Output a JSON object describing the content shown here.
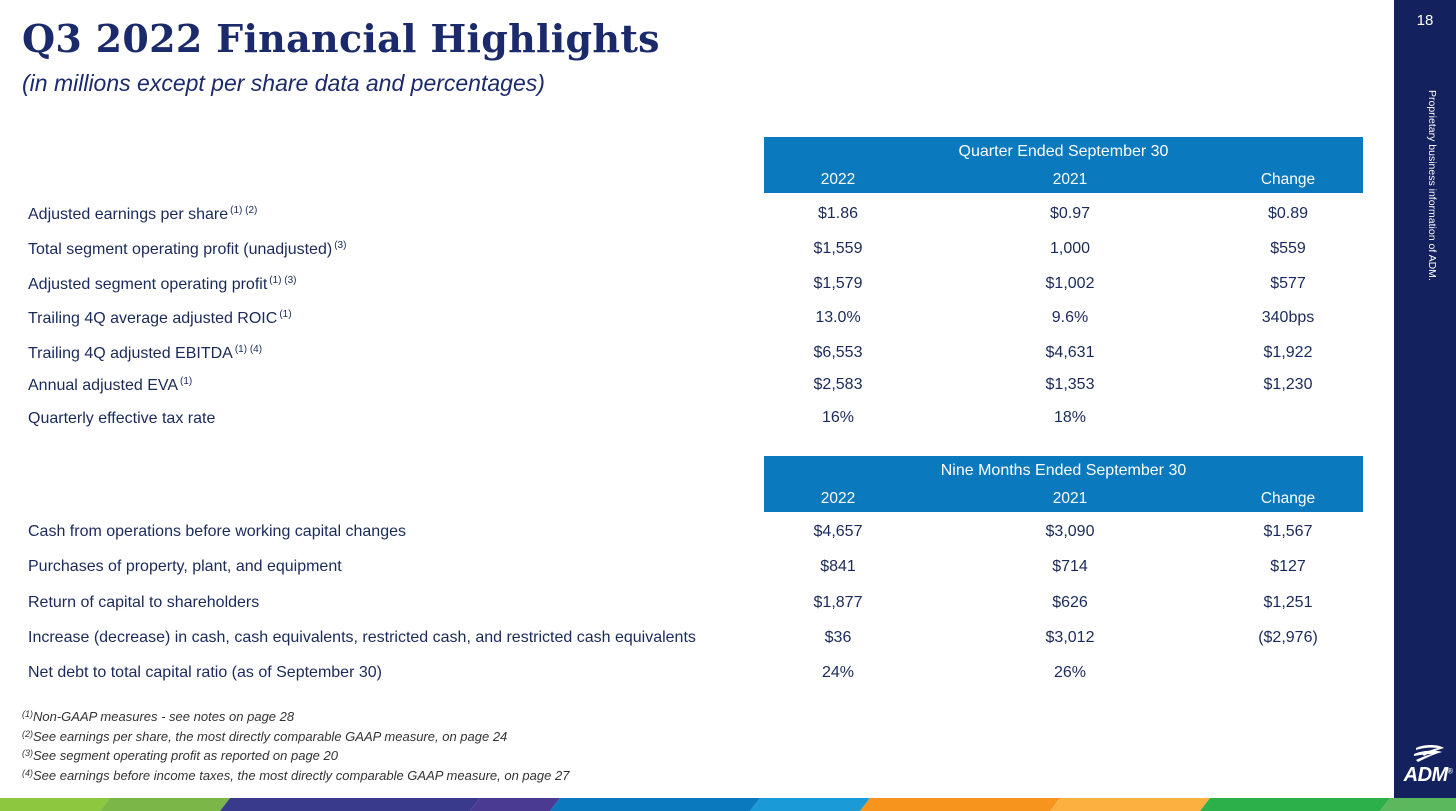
{
  "header": {
    "title": "Q3 2022 Financial Highlights",
    "subtitle": "(in millions except per share data and percentages)"
  },
  "sidebar": {
    "page_number": "18",
    "vertical_note": "Proprietary business information of ADM.",
    "logo_text": "ADM",
    "logo_mark": "®"
  },
  "quarter_table": {
    "period": "Quarter Ended September 30",
    "columns": [
      "2022",
      "2021",
      "Change"
    ],
    "rows": [
      {
        "label": "Adjusted earnings per share",
        "note": "(1) (2)",
        "v2022": "$1.86",
        "v2021": "$0.97",
        "change": "$0.89"
      },
      {
        "label": "Total segment operating profit (unadjusted)",
        "note": "(3)",
        "v2022": "$1,559",
        "v2021": "1,000",
        "change": "$559"
      },
      {
        "label": "Adjusted segment operating profit",
        "note": "(1) (3)",
        "v2022": "$1,579",
        "v2021": "$1,002",
        "change": "$577"
      },
      {
        "label": "Trailing 4Q average adjusted ROIC",
        "note": "(1)",
        "v2022": "13.0%",
        "v2021": "9.6%",
        "change": "340bps"
      },
      {
        "label": "Trailing 4Q adjusted EBITDA",
        "note": "(1) (4)",
        "v2022": "$6,553",
        "v2021": "$4,631",
        "change": "$1,922"
      },
      {
        "label": "Annual adjusted EVA",
        "note": "(1)",
        "v2022": "$2,583",
        "v2021": "$1,353",
        "change": "$1,230"
      },
      {
        "label": "Quarterly effective tax rate",
        "note": "",
        "v2022": "16%",
        "v2021": "18%",
        "change": ""
      }
    ]
  },
  "nine_month_table": {
    "period": "Nine Months Ended September 30",
    "columns": [
      "2022",
      "2021",
      "Change"
    ],
    "rows": [
      {
        "label": "Cash from operations before working capital changes",
        "v2022": "$4,657",
        "v2021": "$3,090",
        "change": "$1,567"
      },
      {
        "label": "Purchases of property, plant, and equipment",
        "v2022": "$841",
        "v2021": "$714",
        "change": "$127"
      },
      {
        "label": "Return of capital to shareholders",
        "v2022": "$1,877",
        "v2021": "$626",
        "change": "$1,251"
      },
      {
        "label": "Increase (decrease) in cash, cash equivalents, restricted cash, and restricted cash equivalents",
        "v2022": "$36",
        "v2021": "$3,012",
        "change": "($2,976)"
      },
      {
        "label": "Net debt to total capital ratio (as of September 30)",
        "v2022": "24%",
        "v2021": "26%",
        "change": ""
      }
    ]
  },
  "footnotes": [
    {
      "mark": "(1)",
      "text": "Non-GAAP measures - see notes on page 28"
    },
    {
      "mark": "(2)",
      "text": "See earnings per share, the most directly comparable GAAP measure, on page 24"
    },
    {
      "mark": "(3)",
      "text": "See segment operating profit as reported on page 20"
    },
    {
      "mark": "(4)",
      "text": "See earnings before income taxes, the most directly comparable GAAP measure, on page 27"
    }
  ],
  "colors": {
    "navy": "#13215e",
    "header_blue": "#0a79bd",
    "title": "#1b2a6b",
    "bar_segments": [
      "#8dc63f",
      "#7ab648",
      "#3a3a8c",
      "#4b3a92",
      "#0a79bd",
      "#1a9ad6",
      "#f7941d",
      "#fbb040",
      "#2bb04a",
      "#5cb85c"
    ]
  }
}
